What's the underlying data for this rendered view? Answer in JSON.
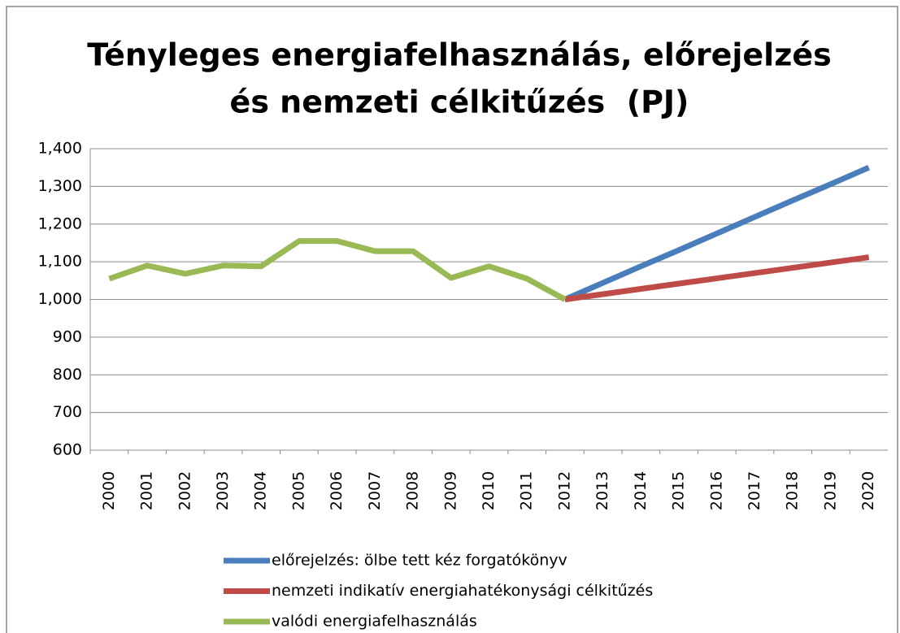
{
  "chart_data": {
    "type": "line",
    "title": [
      "Tényleges energiafelhasználás, előrejelzés",
      "és nemzeti célkitűzés  (PJ)"
    ],
    "categories": [
      "2000",
      "2001",
      "2002",
      "2003",
      "2004",
      "2005",
      "2006",
      "2007",
      "2008",
      "2009",
      "2010",
      "2011",
      "2012",
      "2013",
      "2014",
      "2015",
      "2016",
      "2017",
      "2018",
      "2019",
      "2020"
    ],
    "series": [
      {
        "name": "előrejelzés: ölbe tett kéz forgatókönyv",
        "color": "#4a7ebb",
        "values": [
          null,
          null,
          null,
          null,
          null,
          null,
          null,
          null,
          null,
          null,
          null,
          null,
          1000,
          1044,
          1088,
          1131,
          1175,
          1219,
          1263,
          1306,
          1350
        ]
      },
      {
        "name": "nemzeti indikatív energiahatékonysági célkitűzés",
        "color": "#be4b48",
        "values": [
          null,
          null,
          null,
          null,
          null,
          null,
          null,
          null,
          null,
          null,
          null,
          null,
          1000,
          1014,
          1028,
          1042,
          1056,
          1070,
          1084,
          1098,
          1112
        ]
      },
      {
        "name": "valódi energiafelhasználás",
        "color": "#98b954",
        "values": [
          1055,
          1090,
          1068,
          1090,
          1088,
          1155,
          1155,
          1128,
          1128,
          1057,
          1088,
          1055,
          1000,
          null,
          null,
          null,
          null,
          null,
          null,
          null,
          null
        ]
      }
    ],
    "ylim": [
      600,
      1400
    ],
    "yticks": [
      600,
      700,
      800,
      900,
      {
        "value": 1000,
        "label": "1,000"
      },
      {
        "value": 1100,
        "label": "1,100"
      },
      {
        "value": 1200,
        "label": "1,200"
      },
      {
        "value": 1300,
        "label": "1,300"
      },
      {
        "value": 1400,
        "label": "1,400"
      }
    ],
    "grid": true
  }
}
